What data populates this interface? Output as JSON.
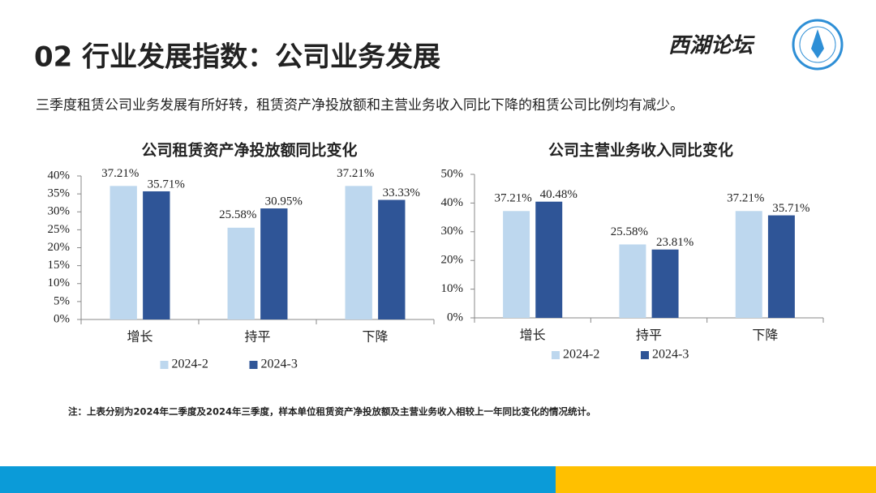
{
  "header": {
    "title": "02 行业发展指数：公司业务发展",
    "logo_text": "西湖论坛"
  },
  "subtitle": "三季度租赁公司业务发展有所好转，租赁资产净投放额和主营业务收入同比下降的租赁公司比例均有减少。",
  "note": "注：上表分别为2024年二季度及2024年三季度，样本单位租赁资产净投放额及主营业务收入相较上一年同比变化的情况统计。",
  "chart_data": [
    {
      "type": "bar",
      "title": "公司租赁资产净投放额同比变化",
      "categories": [
        "增长",
        "持平",
        "下降"
      ],
      "series": [
        {
          "name": "2024-2",
          "color": "#bdd7ee",
          "values": [
            37.21,
            25.58,
            37.21
          ],
          "value_labels": [
            "37.21%",
            "25.58%",
            "37.21%"
          ]
        },
        {
          "name": "2024-3",
          "color": "#2f5597",
          "values": [
            35.71,
            30.95,
            33.33
          ],
          "value_labels": [
            "35.71%",
            "30.95%",
            "33.33%"
          ]
        }
      ],
      "ylim": [
        0,
        40
      ],
      "yticks": [
        {
          "value": 0,
          "label": "0%"
        },
        {
          "value": 5,
          "label": "5%"
        },
        {
          "value": 10,
          "label": "10%"
        },
        {
          "value": 15,
          "label": "15%"
        },
        {
          "value": 20,
          "label": "20%"
        },
        {
          "value": 25,
          "label": "25%"
        },
        {
          "value": 30,
          "label": "30%"
        },
        {
          "value": 35,
          "label": "35%"
        },
        {
          "value": 40,
          "label": "40%"
        }
      ],
      "legend": "bottom"
    },
    {
      "type": "bar",
      "title": "公司主营业务收入同比变化",
      "categories": [
        "增长",
        "持平",
        "下降"
      ],
      "series": [
        {
          "name": "2024-2",
          "color": "#bdd7ee",
          "values": [
            37.21,
            25.58,
            37.21
          ],
          "value_labels": [
            "37.21%",
            "25.58%",
            "37.21%"
          ]
        },
        {
          "name": "2024-3",
          "color": "#2f5597",
          "values": [
            40.48,
            23.81,
            35.71
          ],
          "value_labels": [
            "40.48%",
            "23.81%",
            "35.71%"
          ]
        }
      ],
      "ylim": [
        0,
        50
      ],
      "yticks": [
        {
          "value": 0,
          "label": "0%"
        },
        {
          "value": 10,
          "label": "10%"
        },
        {
          "value": 20,
          "label": "20%"
        },
        {
          "value": 30,
          "label": "30%"
        },
        {
          "value": 40,
          "label": "40%"
        },
        {
          "value": 50,
          "label": "50%"
        }
      ],
      "legend": "bottom"
    }
  ]
}
